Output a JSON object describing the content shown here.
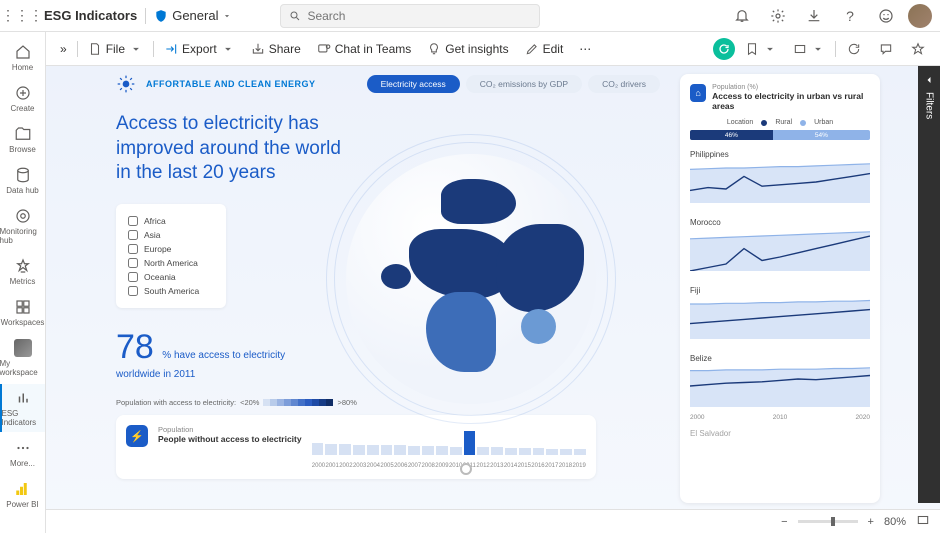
{
  "titlebar": {
    "app": "ESG Indicators",
    "sensitivity": "General",
    "search_placeholder": "Search"
  },
  "leftnav": [
    {
      "key": "home",
      "label": "Home"
    },
    {
      "key": "create",
      "label": "Create"
    },
    {
      "key": "browse",
      "label": "Browse"
    },
    {
      "key": "datahub",
      "label": "Data hub"
    },
    {
      "key": "monitoring",
      "label": "Monitoring hub"
    },
    {
      "key": "metrics",
      "label": "Metrics"
    },
    {
      "key": "workspaces",
      "label": "Workspaces"
    },
    {
      "key": "myws",
      "label": "My workspace"
    },
    {
      "key": "esg",
      "label": "ESG Indicators"
    },
    {
      "key": "more",
      "label": "More..."
    },
    {
      "key": "powerbi",
      "label": "Power BI"
    }
  ],
  "cmdbar": {
    "file": "File",
    "export": "Export",
    "share": "Share",
    "chat": "Chat in Teams",
    "insights": "Get insights",
    "edit": "Edit"
  },
  "report": {
    "header": "AFFORTABLE AND CLEAN ENERGY",
    "pills": [
      {
        "label": "Electricity access",
        "active": true
      },
      {
        "label": "CO₂ emissions by GDP",
        "active": false
      },
      {
        "label": "CO₂ drivers",
        "active": false
      }
    ],
    "headline_bold": "Access to electricity",
    "headline_rest": " has improved around the world in the last 20 years",
    "regions": [
      "Africa",
      "Asia",
      "Europe",
      "North America",
      "Oceania",
      "South America"
    ],
    "stat": {
      "value": "78",
      "unit": "% have access to electricity",
      "sub": "worldwide in 2011"
    },
    "legend": {
      "label": "Population with access to electricity:",
      "low": "<20%",
      "high": ">80%",
      "colors": [
        "#d6e1f3",
        "#b8cbea",
        "#9bb4e2",
        "#7d9dd9",
        "#6087d0",
        "#4270c8",
        "#2b5cc0",
        "#1e4aa6",
        "#163b85",
        "#102d66"
      ]
    },
    "timeline": {
      "subtitle": "Population",
      "title": "People without access to electricity",
      "years": [
        "2000",
        "2001",
        "2002",
        "2003",
        "2004",
        "2005",
        "2006",
        "2007",
        "2008",
        "2009",
        "2010",
        "2011",
        "2012",
        "2013",
        "2014",
        "2015",
        "2016",
        "2017",
        "2018",
        "2019"
      ],
      "bars": [
        12,
        11,
        11,
        10,
        10,
        10,
        10,
        9,
        9,
        9,
        8,
        24,
        8,
        8,
        7,
        7,
        7,
        6,
        6,
        6
      ],
      "highlight_index": 11,
      "bar_max": 26,
      "bar_bg": "#d6e1f3",
      "bar_hl": "#1b5cc7"
    }
  },
  "panel": {
    "subtitle": "Population (%)",
    "title": "Access to electricity in urban vs rural areas",
    "legend": {
      "label": "Location",
      "rural": "Rural",
      "urban": "Urban",
      "rural_color": "#1b3a7a",
      "urban_color": "#8fb3e8"
    },
    "stacked": {
      "rural": 46,
      "urban": 54
    },
    "countries": [
      {
        "name": "Philippines",
        "rural": [
          58,
          62,
          60,
          78,
          64,
          66,
          68,
          70,
          74,
          78,
          82
        ],
        "urban": [
          88,
          89,
          90,
          90,
          91,
          92,
          92,
          93,
          94,
          95,
          96
        ]
      },
      {
        "name": "Morocco",
        "rural": [
          40,
          45,
          50,
          72,
          55,
          60,
          66,
          72,
          78,
          84,
          90
        ],
        "urban": [
          86,
          87,
          88,
          89,
          90,
          91,
          92,
          93,
          94,
          95,
          96
        ]
      },
      {
        "name": "Fiji",
        "rural": [
          62,
          64,
          66,
          68,
          70,
          72,
          74,
          76,
          78,
          80,
          82
        ],
        "urban": [
          90,
          90,
          91,
          91,
          92,
          92,
          93,
          93,
          94,
          94,
          95
        ]
      },
      {
        "name": "Belize",
        "rural": [
          70,
          72,
          74,
          75,
          76,
          78,
          80,
          79,
          81,
          83,
          85
        ],
        "urban": [
          92,
          92,
          93,
          93,
          93,
          94,
          94,
          94,
          95,
          95,
          96
        ]
      }
    ],
    "x_labels": [
      "2000",
      "2010",
      "2020"
    ],
    "y_ticks": [
      50,
      100
    ],
    "next_country": "El Salvador"
  },
  "filters_label": "Filters",
  "status": {
    "zoom": "80%",
    "zoom_pos": 55
  }
}
